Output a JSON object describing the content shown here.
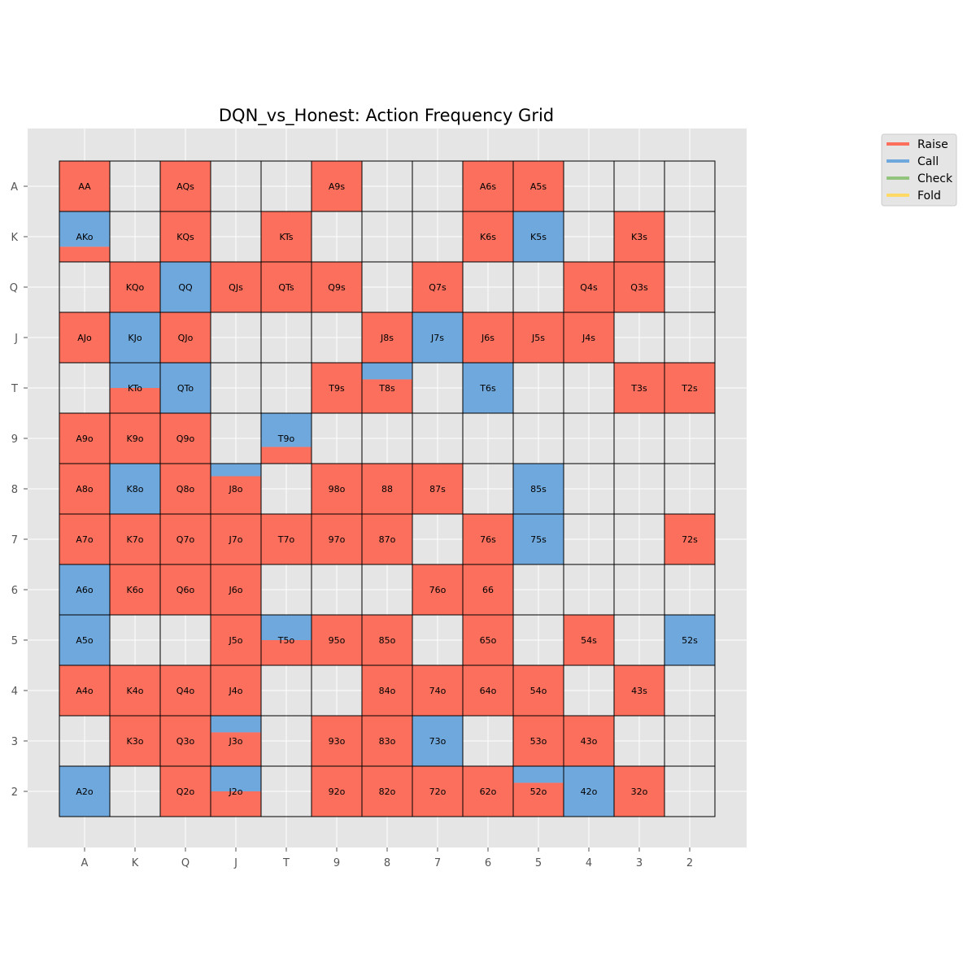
{
  "chart_data": {
    "type": "heatmap",
    "title": "DQN_vs_Honest: Action Frequency Grid",
    "xlabel": "",
    "ylabel": "",
    "ranks": [
      "A",
      "K",
      "Q",
      "J",
      "T",
      "9",
      "8",
      "7",
      "6",
      "5",
      "4",
      "3",
      "2"
    ],
    "grid": true,
    "legend_position": "upper-right outside",
    "actions": [
      {
        "name": "Raise",
        "color": "#fb6f5c"
      },
      {
        "name": "Call",
        "color": "#6fa8dc"
      },
      {
        "name": "Check",
        "color": "#93c47d"
      },
      {
        "name": "Fold",
        "color": "#ffd966"
      }
    ],
    "background_color": "#e5e5e5",
    "cells": [
      {
        "row": "A",
        "col": "A",
        "label": "AA",
        "raise": 1.0,
        "call": 0.0
      },
      {
        "row": "A",
        "col": "Q",
        "label": "AQs",
        "raise": 1.0,
        "call": 0.0
      },
      {
        "row": "A",
        "col": "9",
        "label": "A9s",
        "raise": 1.0,
        "call": 0.0
      },
      {
        "row": "A",
        "col": "6",
        "label": "A6s",
        "raise": 1.0,
        "call": 0.0
      },
      {
        "row": "A",
        "col": "5",
        "label": "A5s",
        "raise": 1.0,
        "call": 0.0
      },
      {
        "row": "K",
        "col": "A",
        "label": "AKo",
        "raise": 0.3,
        "call": 0.7
      },
      {
        "row": "K",
        "col": "Q",
        "label": "KQs",
        "raise": 1.0,
        "call": 0.0
      },
      {
        "row": "K",
        "col": "T",
        "label": "KTs",
        "raise": 1.0,
        "call": 0.0
      },
      {
        "row": "K",
        "col": "6",
        "label": "K6s",
        "raise": 1.0,
        "call": 0.0
      },
      {
        "row": "K",
        "col": "5",
        "label": "K5s",
        "raise": 0.0,
        "call": 1.0
      },
      {
        "row": "K",
        "col": "3",
        "label": "K3s",
        "raise": 1.0,
        "call": 0.0
      },
      {
        "row": "Q",
        "col": "K",
        "label": "KQo",
        "raise": 1.0,
        "call": 0.0
      },
      {
        "row": "Q",
        "col": "Q",
        "label": "QQ",
        "raise": 0.0,
        "call": 1.0
      },
      {
        "row": "Q",
        "col": "J",
        "label": "QJs",
        "raise": 1.0,
        "call": 0.0
      },
      {
        "row": "Q",
        "col": "T",
        "label": "QTs",
        "raise": 1.0,
        "call": 0.0
      },
      {
        "row": "Q",
        "col": "9",
        "label": "Q9s",
        "raise": 1.0,
        "call": 0.0
      },
      {
        "row": "Q",
        "col": "7",
        "label": "Q7s",
        "raise": 1.0,
        "call": 0.0
      },
      {
        "row": "Q",
        "col": "4",
        "label": "Q4s",
        "raise": 1.0,
        "call": 0.0
      },
      {
        "row": "Q",
        "col": "3",
        "label": "Q3s",
        "raise": 1.0,
        "call": 0.0
      },
      {
        "row": "J",
        "col": "A",
        "label": "AJo",
        "raise": 1.0,
        "call": 0.0
      },
      {
        "row": "J",
        "col": "K",
        "label": "KJo",
        "raise": 0.0,
        "call": 1.0
      },
      {
        "row": "J",
        "col": "Q",
        "label": "QJo",
        "raise": 1.0,
        "call": 0.0
      },
      {
        "row": "J",
        "col": "8",
        "label": "J8s",
        "raise": 1.0,
        "call": 0.0
      },
      {
        "row": "J",
        "col": "7",
        "label": "J7s",
        "raise": 0.0,
        "call": 1.0
      },
      {
        "row": "J",
        "col": "6",
        "label": "J6s",
        "raise": 1.0,
        "call": 0.0
      },
      {
        "row": "J",
        "col": "5",
        "label": "J5s",
        "raise": 1.0,
        "call": 0.0
      },
      {
        "row": "J",
        "col": "4",
        "label": "J4s",
        "raise": 1.0,
        "call": 0.0
      },
      {
        "row": "T",
        "col": "K",
        "label": "KTo",
        "raise": 0.5,
        "call": 0.5
      },
      {
        "row": "T",
        "col": "Q",
        "label": "QTo",
        "raise": 0.0,
        "call": 1.0
      },
      {
        "row": "T",
        "col": "9",
        "label": "T9s",
        "raise": 1.0,
        "call": 0.0
      },
      {
        "row": "T",
        "col": "8",
        "label": "T8s",
        "raise": 0.67,
        "call": 0.33
      },
      {
        "row": "T",
        "col": "6",
        "label": "T6s",
        "raise": 0.0,
        "call": 1.0
      },
      {
        "row": "T",
        "col": "3",
        "label": "T3s",
        "raise": 1.0,
        "call": 0.0
      },
      {
        "row": "T",
        "col": "2",
        "label": "T2s",
        "raise": 1.0,
        "call": 0.0
      },
      {
        "row": "9",
        "col": "A",
        "label": "A9o",
        "raise": 1.0,
        "call": 0.0
      },
      {
        "row": "9",
        "col": "K",
        "label": "K9o",
        "raise": 1.0,
        "call": 0.0
      },
      {
        "row": "9",
        "col": "Q",
        "label": "Q9o",
        "raise": 1.0,
        "call": 0.0
      },
      {
        "row": "9",
        "col": "T",
        "label": "T9o",
        "raise": 0.33,
        "call": 0.67
      },
      {
        "row": "8",
        "col": "A",
        "label": "A8o",
        "raise": 1.0,
        "call": 0.0
      },
      {
        "row": "8",
        "col": "K",
        "label": "K8o",
        "raise": 0.0,
        "call": 1.0
      },
      {
        "row": "8",
        "col": "Q",
        "label": "Q8o",
        "raise": 1.0,
        "call": 0.0
      },
      {
        "row": "8",
        "col": "J",
        "label": "J8o",
        "raise": 0.75,
        "call": 0.25
      },
      {
        "row": "8",
        "col": "9",
        "label": "98o",
        "raise": 1.0,
        "call": 0.0
      },
      {
        "row": "8",
        "col": "8",
        "label": "88",
        "raise": 1.0,
        "call": 0.0
      },
      {
        "row": "8",
        "col": "7",
        "label": "87s",
        "raise": 1.0,
        "call": 0.0
      },
      {
        "row": "8",
        "col": "5",
        "label": "85s",
        "raise": 0.0,
        "call": 1.0
      },
      {
        "row": "7",
        "col": "A",
        "label": "A7o",
        "raise": 1.0,
        "call": 0.0
      },
      {
        "row": "7",
        "col": "K",
        "label": "K7o",
        "raise": 1.0,
        "call": 0.0
      },
      {
        "row": "7",
        "col": "Q",
        "label": "Q7o",
        "raise": 1.0,
        "call": 0.0
      },
      {
        "row": "7",
        "col": "J",
        "label": "J7o",
        "raise": 1.0,
        "call": 0.0
      },
      {
        "row": "7",
        "col": "T",
        "label": "T7o",
        "raise": 1.0,
        "call": 0.0
      },
      {
        "row": "7",
        "col": "9",
        "label": "97o",
        "raise": 1.0,
        "call": 0.0
      },
      {
        "row": "7",
        "col": "8",
        "label": "87o",
        "raise": 1.0,
        "call": 0.0
      },
      {
        "row": "7",
        "col": "6",
        "label": "76s",
        "raise": 1.0,
        "call": 0.0
      },
      {
        "row": "7",
        "col": "5",
        "label": "75s",
        "raise": 0.0,
        "call": 1.0
      },
      {
        "row": "7",
        "col": "2",
        "label": "72s",
        "raise": 1.0,
        "call": 0.0
      },
      {
        "row": "6",
        "col": "A",
        "label": "A6o",
        "raise": 0.0,
        "call": 1.0
      },
      {
        "row": "6",
        "col": "K",
        "label": "K6o",
        "raise": 1.0,
        "call": 0.0
      },
      {
        "row": "6",
        "col": "Q",
        "label": "Q6o",
        "raise": 1.0,
        "call": 0.0
      },
      {
        "row": "6",
        "col": "J",
        "label": "J6o",
        "raise": 1.0,
        "call": 0.0
      },
      {
        "row": "6",
        "col": "7",
        "label": "76o",
        "raise": 1.0,
        "call": 0.0
      },
      {
        "row": "6",
        "col": "6",
        "label": "66",
        "raise": 1.0,
        "call": 0.0
      },
      {
        "row": "5",
        "col": "A",
        "label": "A5o",
        "raise": 0.0,
        "call": 1.0
      },
      {
        "row": "5",
        "col": "J",
        "label": "J5o",
        "raise": 1.0,
        "call": 0.0
      },
      {
        "row": "5",
        "col": "T",
        "label": "T5o",
        "raise": 0.5,
        "call": 0.5
      },
      {
        "row": "5",
        "col": "9",
        "label": "95o",
        "raise": 1.0,
        "call": 0.0
      },
      {
        "row": "5",
        "col": "8",
        "label": "85o",
        "raise": 1.0,
        "call": 0.0
      },
      {
        "row": "5",
        "col": "6",
        "label": "65o",
        "raise": 1.0,
        "call": 0.0
      },
      {
        "row": "5",
        "col": "4",
        "label": "54s",
        "raise": 1.0,
        "call": 0.0
      },
      {
        "row": "5",
        "col": "2",
        "label": "52s",
        "raise": 0.0,
        "call": 1.0
      },
      {
        "row": "4",
        "col": "A",
        "label": "A4o",
        "raise": 1.0,
        "call": 0.0
      },
      {
        "row": "4",
        "col": "K",
        "label": "K4o",
        "raise": 1.0,
        "call": 0.0
      },
      {
        "row": "4",
        "col": "Q",
        "label": "Q4o",
        "raise": 1.0,
        "call": 0.0
      },
      {
        "row": "4",
        "col": "J",
        "label": "J4o",
        "raise": 1.0,
        "call": 0.0
      },
      {
        "row": "4",
        "col": "8",
        "label": "84o",
        "raise": 1.0,
        "call": 0.0
      },
      {
        "row": "4",
        "col": "7",
        "label": "74o",
        "raise": 1.0,
        "call": 0.0
      },
      {
        "row": "4",
        "col": "6",
        "label": "64o",
        "raise": 1.0,
        "call": 0.0
      },
      {
        "row": "4",
        "col": "5",
        "label": "54o",
        "raise": 1.0,
        "call": 0.0
      },
      {
        "row": "4",
        "col": "3",
        "label": "43s",
        "raise": 1.0,
        "call": 0.0
      },
      {
        "row": "3",
        "col": "K",
        "label": "K3o",
        "raise": 1.0,
        "call": 0.0
      },
      {
        "row": "3",
        "col": "Q",
        "label": "Q3o",
        "raise": 1.0,
        "call": 0.0
      },
      {
        "row": "3",
        "col": "J",
        "label": "J3o",
        "raise": 0.67,
        "call": 0.33
      },
      {
        "row": "3",
        "col": "9",
        "label": "93o",
        "raise": 1.0,
        "call": 0.0
      },
      {
        "row": "3",
        "col": "8",
        "label": "83o",
        "raise": 1.0,
        "call": 0.0
      },
      {
        "row": "3",
        "col": "7",
        "label": "73o",
        "raise": 0.0,
        "call": 1.0
      },
      {
        "row": "3",
        "col": "5",
        "label": "53o",
        "raise": 1.0,
        "call": 0.0
      },
      {
        "row": "3",
        "col": "4",
        "label": "43o",
        "raise": 1.0,
        "call": 0.0
      },
      {
        "row": "2",
        "col": "A",
        "label": "A2o",
        "raise": 0.0,
        "call": 1.0
      },
      {
        "row": "2",
        "col": "Q",
        "label": "Q2o",
        "raise": 1.0,
        "call": 0.0
      },
      {
        "row": "2",
        "col": "J",
        "label": "J2o",
        "raise": 0.5,
        "call": 0.5
      },
      {
        "row": "2",
        "col": "9",
        "label": "92o",
        "raise": 1.0,
        "call": 0.0
      },
      {
        "row": "2",
        "col": "8",
        "label": "82o",
        "raise": 1.0,
        "call": 0.0
      },
      {
        "row": "2",
        "col": "7",
        "label": "72o",
        "raise": 1.0,
        "call": 0.0
      },
      {
        "row": "2",
        "col": "6",
        "label": "62o",
        "raise": 1.0,
        "call": 0.0
      },
      {
        "row": "2",
        "col": "5",
        "label": "52o",
        "raise": 0.67,
        "call": 0.33
      },
      {
        "row": "2",
        "col": "4",
        "label": "42o",
        "raise": 0.0,
        "call": 1.0
      },
      {
        "row": "2",
        "col": "3",
        "label": "32o",
        "raise": 1.0,
        "call": 0.0
      }
    ]
  }
}
